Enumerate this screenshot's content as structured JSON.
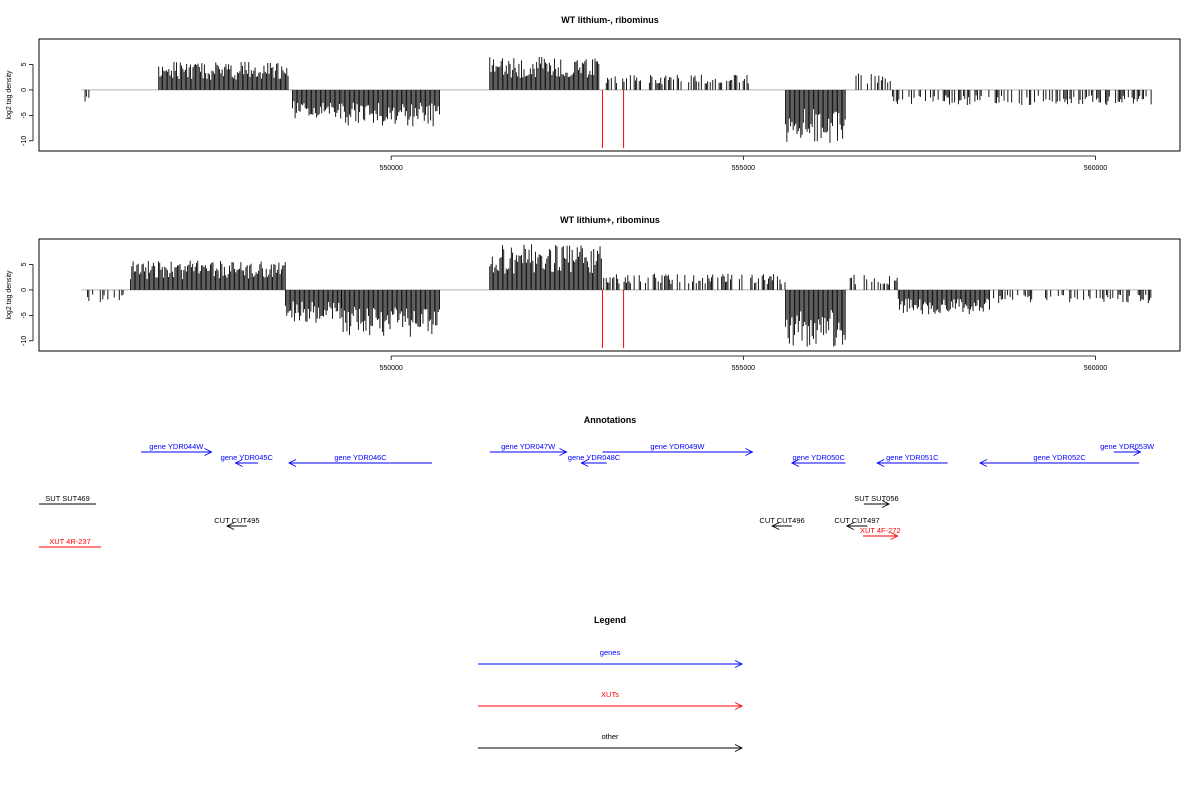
{
  "colors": {
    "gene": "#0000ff",
    "xut": "#ff0000",
    "other": "#000000",
    "marker": "#ff0000",
    "bars": "#000000"
  },
  "chart_data": [
    {
      "type": "bar",
      "title": "WT lithium-, ribominus",
      "ylabel": "log2 tag density",
      "xlim": [
        545000,
        561200
      ],
      "ylim": [
        -12,
        10
      ],
      "yticks": [
        -10,
        -5,
        0,
        5
      ],
      "yticklabels": [
        "-10",
        "-5",
        "0",
        "5"
      ],
      "xticks": [
        550000,
        555000,
        560000
      ],
      "xticklabels": [
        "550000",
        "555000",
        "560000"
      ],
      "markers_x": [
        553000,
        553300
      ],
      "profile": [
        {
          "start": 545600,
          "end": 545750,
          "value": -2.8
        },
        {
          "start": 546700,
          "end": 548550,
          "value": 5.5
        },
        {
          "start": 548600,
          "end": 549300,
          "value": -5.8
        },
        {
          "start": 549300,
          "end": 550700,
          "value": -7.2
        },
        {
          "start": 551400,
          "end": 552950,
          "value": 6.5
        },
        {
          "start": 553000,
          "end": 555100,
          "value": 3.0
        },
        {
          "start": 555600,
          "end": 556450,
          "value": -10.6
        },
        {
          "start": 556600,
          "end": 557100,
          "value": 3.2
        },
        {
          "start": 557100,
          "end": 560800,
          "value": -3.0
        }
      ]
    },
    {
      "type": "bar",
      "title": "WT lithium+, ribominus",
      "ylabel": "log2 tag density",
      "xlim": [
        545000,
        561200
      ],
      "ylim": [
        -12,
        10
      ],
      "yticks": [
        -10,
        -5,
        0,
        5
      ],
      "yticklabels": [
        "-10",
        "-5",
        "0",
        "5"
      ],
      "xticks": [
        550000,
        555000,
        560000
      ],
      "xticklabels": [
        "550000",
        "555000",
        "560000"
      ],
      "markers_x": [
        553000,
        553300
      ],
      "profile": [
        {
          "start": 545600,
          "end": 546200,
          "value": -2.5
        },
        {
          "start": 546300,
          "end": 548500,
          "value": 5.8
        },
        {
          "start": 548500,
          "end": 549300,
          "value": -6.5
        },
        {
          "start": 549300,
          "end": 550700,
          "value": -9.2
        },
        {
          "start": 551400,
          "end": 553000,
          "value": 9.0
        },
        {
          "start": 553000,
          "end": 555600,
          "value": 3.2
        },
        {
          "start": 555600,
          "end": 556450,
          "value": -11.2
        },
        {
          "start": 556500,
          "end": 557200,
          "value": 3.0
        },
        {
          "start": 557200,
          "end": 558500,
          "value": -4.8
        },
        {
          "start": 558500,
          "end": 560800,
          "value": -2.6
        }
      ]
    }
  ],
  "annotations": {
    "title": "Annotations",
    "features": [
      {
        "label": "gene YDR044W",
        "type": "gene",
        "start": 546450,
        "end": 547450,
        "strand": "+",
        "row": 0
      },
      {
        "label": "gene YDR045C",
        "type": "gene",
        "start": 547790,
        "end": 548110,
        "strand": "-",
        "row": 1
      },
      {
        "label": "gene YDR046C",
        "type": "gene",
        "start": 548550,
        "end": 550580,
        "strand": "-",
        "row": 1
      },
      {
        "label": "gene YDR047W",
        "type": "gene",
        "start": 551400,
        "end": 552490,
        "strand": "+",
        "row": 0
      },
      {
        "label": "gene YDR048C",
        "type": "gene",
        "start": 552700,
        "end": 553060,
        "strand": "-",
        "row": 1
      },
      {
        "label": "gene YDR049W",
        "type": "gene",
        "start": 553000,
        "end": 555130,
        "strand": "+",
        "row": 0
      },
      {
        "label": "gene YDR050C",
        "type": "gene",
        "start": 555690,
        "end": 556450,
        "strand": "-",
        "row": 1
      },
      {
        "label": "gene YDR051C",
        "type": "gene",
        "start": 556900,
        "end": 557900,
        "strand": "-",
        "row": 1
      },
      {
        "label": "gene YDR052C",
        "type": "gene",
        "start": 558360,
        "end": 560620,
        "strand": "-",
        "row": 1
      },
      {
        "label": "gene YDR053W",
        "type": "gene",
        "start": 560260,
        "end": 560640,
        "strand": "+",
        "row": 0
      },
      {
        "label": "SUT SUT469",
        "type": "other",
        "start": 545000,
        "end": 545810,
        "strand": "",
        "row": 2
      },
      {
        "label": "SUT SUT056",
        "type": "other",
        "start": 556710,
        "end": 557070,
        "strand": "+",
        "row": 2
      },
      {
        "label": "CUT CUT495",
        "type": "other",
        "start": 547670,
        "end": 547950,
        "strand": "-",
        "row": 3
      },
      {
        "label": "CUT CUT496",
        "type": "other",
        "start": 555410,
        "end": 555690,
        "strand": "-",
        "row": 3
      },
      {
        "label": "CUT CUT497",
        "type": "other",
        "start": 556470,
        "end": 556760,
        "strand": "-",
        "row": 3
      },
      {
        "label": "XUT 4F-272",
        "type": "xut",
        "start": 556700,
        "end": 557190,
        "strand": "+",
        "row": 4
      },
      {
        "label": "XUT 4R-237",
        "type": "xut",
        "start": 545000,
        "end": 545880,
        "strand": "",
        "row": 5
      }
    ]
  },
  "legend": {
    "title": "Legend",
    "items": [
      {
        "label": "genes",
        "type": "gene"
      },
      {
        "label": "XUTs",
        "type": "xut"
      },
      {
        "label": "other",
        "type": "other"
      }
    ]
  }
}
